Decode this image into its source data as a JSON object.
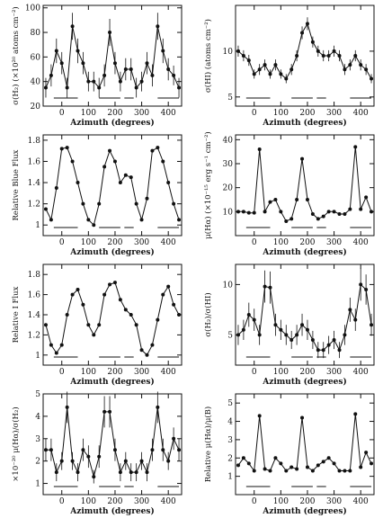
{
  "chart_data": [
    {
      "type": "line",
      "y_label": "σ(H₂) (×10²⁰ atoms cm⁻²)",
      "x_label": "Azimuth (degrees)",
      "x": [
        -60,
        -40,
        -20,
        0,
        20,
        40,
        60,
        80,
        100,
        120,
        140,
        160,
        180,
        200,
        220,
        240,
        260,
        280,
        300,
        320,
        340,
        360,
        380,
        400,
        420,
        440
      ],
      "values": [
        35,
        45,
        65,
        55,
        35,
        85,
        65,
        55,
        40,
        40,
        35,
        45,
        80,
        55,
        40,
        50,
        50,
        35,
        40,
        55,
        45,
        85,
        65,
        50,
        45,
        35
      ],
      "errors": [
        8,
        9,
        10,
        9,
        8,
        11,
        10,
        9,
        8,
        8,
        8,
        9,
        11,
        9,
        8,
        9,
        9,
        8,
        8,
        9,
        9,
        11,
        10,
        9,
        8,
        8
      ],
      "segments": [
        [
          -30,
          60
        ],
        [
          140,
          220
        ],
        [
          235,
          270
        ],
        [
          360,
          440
        ]
      ],
      "xlim": [
        -70,
        450
      ],
      "xticks": [
        0,
        100,
        200,
        300,
        400
      ],
      "ylim": [
        20,
        102
      ],
      "yticks": [
        20,
        40,
        60,
        80,
        100
      ],
      "color": "#111"
    },
    {
      "type": "line",
      "y_label": "σ(HI) (atoms cm⁻²)",
      "x_label": "Azimuth (degrees)",
      "x": [
        -60,
        -40,
        -20,
        0,
        20,
        40,
        60,
        80,
        100,
        120,
        140,
        160,
        180,
        200,
        220,
        240,
        260,
        280,
        300,
        320,
        340,
        360,
        380,
        400,
        420,
        440
      ],
      "values": [
        10,
        9.5,
        9,
        7.5,
        8,
        8.5,
        7.5,
        8.5,
        7.5,
        7,
        8,
        9.5,
        12,
        13,
        11,
        10,
        9.5,
        9.5,
        10,
        9.5,
        8,
        8.5,
        9.5,
        8.5,
        8,
        7
      ],
      "errors": [
        0.6,
        0.6,
        0.6,
        0.5,
        0.6,
        0.6,
        0.5,
        0.6,
        0.5,
        0.5,
        0.6,
        0.6,
        0.7,
        0.7,
        0.6,
        0.6,
        0.6,
        0.6,
        0.6,
        0.6,
        0.6,
        0.6,
        0.6,
        0.6,
        0.6,
        0.5
      ],
      "segments": [
        [
          -30,
          60
        ],
        [
          140,
          220
        ],
        [
          235,
          270
        ],
        [
          360,
          440
        ]
      ],
      "xlim": [
        -70,
        450
      ],
      "xticks": [
        0,
        100,
        200,
        300,
        400
      ],
      "ylim": [
        4,
        15
      ],
      "yticks": [
        5,
        10
      ],
      "color": "#111"
    },
    {
      "type": "line",
      "y_label": "Relative Blue Flux",
      "x_label": "Azimuth (degrees)",
      "x": [
        -60,
        -40,
        -20,
        0,
        20,
        40,
        60,
        80,
        100,
        120,
        140,
        160,
        180,
        200,
        220,
        240,
        260,
        280,
        300,
        320,
        340,
        360,
        380,
        400,
        420,
        440
      ],
      "values": [
        1.15,
        1.05,
        1.35,
        1.72,
        1.73,
        1.6,
        1.4,
        1.2,
        1.05,
        1.0,
        1.2,
        1.55,
        1.7,
        1.6,
        1.4,
        1.47,
        1.45,
        1.2,
        1.05,
        1.25,
        1.7,
        1.73,
        1.6,
        1.4,
        1.2,
        1.05
      ],
      "segments": [
        [
          -30,
          60
        ],
        [
          140,
          220
        ],
        [
          235,
          270
        ],
        [
          360,
          440
        ]
      ],
      "xlim": [
        -70,
        450
      ],
      "xticks": [
        0,
        100,
        200,
        300,
        400
      ],
      "ylim": [
        0.9,
        1.85
      ],
      "yticks": [
        1,
        1.2,
        1.4,
        1.6,
        1.8
      ],
      "color": "#111"
    },
    {
      "type": "line",
      "y_label": "μ(Hα) (×10⁻¹⁵ erg s⁻¹ cm⁻²)",
      "x_label": "Azimuth (degrees)",
      "x": [
        -60,
        -40,
        -20,
        0,
        20,
        40,
        60,
        80,
        100,
        120,
        140,
        160,
        180,
        200,
        220,
        240,
        260,
        280,
        300,
        320,
        340,
        360,
        380,
        400,
        420,
        440
      ],
      "values": [
        10,
        10,
        9.5,
        9.5,
        36,
        10,
        14,
        15,
        10,
        6,
        7,
        15,
        32,
        15,
        9,
        7,
        8,
        10,
        10,
        9,
        9,
        11,
        37,
        11,
        16,
        10
      ],
      "segments": [
        [
          -30,
          60
        ],
        [
          140,
          220
        ],
        [
          235,
          270
        ],
        [
          360,
          440
        ]
      ],
      "xlim": [
        -70,
        450
      ],
      "xticks": [
        0,
        100,
        200,
        300,
        400
      ],
      "ylim": [
        0,
        42
      ],
      "yticks": [
        10,
        20,
        30,
        40
      ],
      "color": "#111"
    },
    {
      "type": "line",
      "y_label": "Relative I Flux",
      "x_label": "Azimuth (degrees)",
      "x": [
        -60,
        -40,
        -20,
        0,
        20,
        40,
        60,
        80,
        100,
        120,
        140,
        160,
        180,
        200,
        220,
        240,
        260,
        280,
        300,
        320,
        340,
        360,
        380,
        400,
        420,
        440
      ],
      "values": [
        1.3,
        1.1,
        1.02,
        1.1,
        1.4,
        1.6,
        1.65,
        1.5,
        1.3,
        1.2,
        1.3,
        1.6,
        1.7,
        1.72,
        1.55,
        1.45,
        1.4,
        1.3,
        1.05,
        1.0,
        1.1,
        1.35,
        1.6,
        1.68,
        1.5,
        1.4
      ],
      "segments": [
        [
          -30,
          60
        ],
        [
          140,
          220
        ],
        [
          235,
          270
        ],
        [
          360,
          440
        ]
      ],
      "xlim": [
        -70,
        450
      ],
      "xticks": [
        0,
        100,
        200,
        300,
        400
      ],
      "ylim": [
        0.9,
        1.9
      ],
      "yticks": [
        1,
        1.2,
        1.4,
        1.6,
        1.8
      ],
      "color": "#111"
    },
    {
      "type": "line",
      "y_label": "σ(H₂)/σ(HI)",
      "x_label": "Azimuth (degrees)",
      "x": [
        -60,
        -40,
        -20,
        0,
        20,
        40,
        60,
        80,
        100,
        120,
        140,
        160,
        180,
        200,
        220,
        240,
        260,
        280,
        300,
        320,
        340,
        360,
        380,
        400,
        420,
        440
      ],
      "values": [
        5,
        5.5,
        7,
        6.5,
        5,
        9.8,
        9.7,
        6,
        5.5,
        5,
        4.5,
        5,
        6,
        5.5,
        4.5,
        3.5,
        3.5,
        4,
        4.5,
        3.5,
        5,
        7.5,
        6.5,
        10,
        9.5,
        6
      ],
      "errors": [
        1,
        1,
        1.2,
        1.1,
        1,
        1.6,
        1.6,
        1.1,
        1,
        1,
        0.9,
        1,
        1.1,
        1,
        0.9,
        0.8,
        0.8,
        0.9,
        0.9,
        0.8,
        1,
        1.2,
        1.1,
        1.6,
        1.5,
        1.1
      ],
      "segments": [
        [
          -30,
          60
        ],
        [
          140,
          220
        ],
        [
          235,
          270
        ],
        [
          360,
          440
        ]
      ],
      "xlim": [
        -70,
        450
      ],
      "xticks": [
        0,
        100,
        200,
        300,
        400
      ],
      "ylim": [
        2,
        12
      ],
      "yticks": [
        5,
        10
      ],
      "color": "#111"
    },
    {
      "type": "line",
      "y_label": "×10⁻²⁰ μ(Hα)/σ(H₂)",
      "x_label": "Azimuth (degrees)",
      "x": [
        -60,
        -40,
        -20,
        0,
        20,
        40,
        60,
        80,
        100,
        120,
        140,
        160,
        180,
        200,
        220,
        240,
        260,
        280,
        300,
        320,
        340,
        360,
        380,
        400,
        420,
        440
      ],
      "values": [
        2.5,
        2.5,
        1.5,
        2,
        4.4,
        2,
        1.5,
        2.5,
        2.2,
        1.3,
        2.2,
        4.2,
        4.2,
        2.5,
        1.5,
        2,
        1.5,
        1.5,
        2,
        1.5,
        2.5,
        4.4,
        2.5,
        2,
        3,
        2.5
      ],
      "errors": [
        0.5,
        0.5,
        0.4,
        0.4,
        0.7,
        0.4,
        0.4,
        0.5,
        0.5,
        0.3,
        0.5,
        0.7,
        0.7,
        0.5,
        0.4,
        0.4,
        0.4,
        0.4,
        0.4,
        0.4,
        0.5,
        0.7,
        0.5,
        0.4,
        0.5,
        0.5
      ],
      "segments": [
        [
          -30,
          60
        ],
        [
          140,
          220
        ],
        [
          235,
          270
        ],
        [
          360,
          440
        ]
      ],
      "xlim": [
        -70,
        450
      ],
      "xticks": [
        0,
        100,
        200,
        300,
        400
      ],
      "ylim": [
        0.5,
        5
      ],
      "yticks": [
        1,
        2,
        3,
        4,
        5
      ],
      "color": "#111"
    },
    {
      "type": "line",
      "y_label": "Relative μ(Hα)/μ(B)",
      "x_label": "Azimuth (degrees)",
      "x": [
        -60,
        -40,
        -20,
        0,
        20,
        40,
        60,
        80,
        100,
        120,
        140,
        160,
        180,
        200,
        220,
        240,
        260,
        280,
        300,
        320,
        340,
        360,
        380,
        400,
        420,
        440
      ],
      "values": [
        1.6,
        2,
        1.7,
        1.3,
        4.3,
        1.4,
        1.3,
        2,
        1.7,
        1.3,
        1.5,
        1.4,
        4.2,
        1.5,
        1.3,
        1.6,
        1.8,
        2,
        1.7,
        1.3,
        1.3,
        1.3,
        4.4,
        1.5,
        2.3,
        1.7
      ],
      "segments": [
        [
          -30,
          60
        ],
        [
          140,
          220
        ],
        [
          235,
          270
        ],
        [
          360,
          440
        ]
      ],
      "xlim": [
        -70,
        450
      ],
      "xticks": [
        0,
        100,
        200,
        300,
        400
      ],
      "ylim": [
        0,
        5.5
      ],
      "yticks": [
        1,
        2,
        3,
        4,
        5
      ],
      "color": "#111"
    }
  ]
}
